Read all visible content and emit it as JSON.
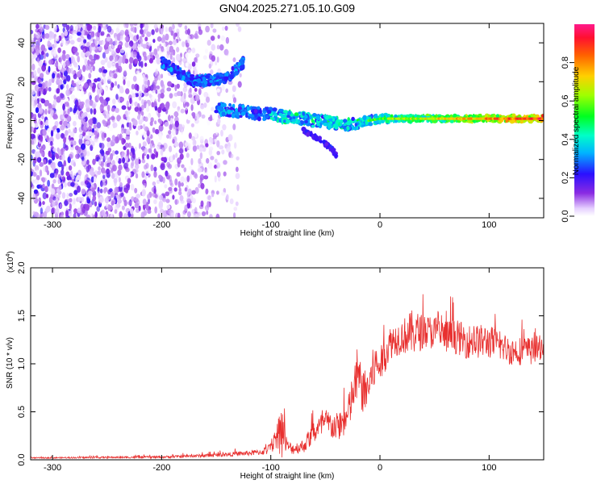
{
  "title": "GN04.2025.271.05.10.G09",
  "chart_data": [
    {
      "type": "heatmap",
      "xlabel": "Height of straight line (km)",
      "ylabel": "Frequency (Hz)",
      "xlim": [
        -320,
        150
      ],
      "ylim": [
        -50,
        50
      ],
      "xticks": [
        -300,
        -200,
        -100,
        0,
        100
      ],
      "yticks": [
        -40,
        -20,
        0,
        20,
        40
      ],
      "colorbar": {
        "label": "Normalized spectral amplitude",
        "range": [
          0,
          1
        ],
        "ticks": [
          0.0,
          0.2,
          0.4,
          0.6,
          0.8
        ],
        "tick_labels": [
          "0.0",
          "0.2",
          "0.4",
          "0.6",
          "0.8"
        ],
        "colormap": "rainbow"
      },
      "features": [
        {
          "name": "noise",
          "x_range": [
            -320,
            -120
          ],
          "y_range": [
            -50,
            50
          ],
          "amplitude": 0.15
        },
        {
          "name": "main-trace",
          "x": [
            -150,
            -100,
            -60,
            -30,
            0,
            50,
            100,
            150
          ],
          "y": [
            6,
            3,
            0,
            -2,
            1,
            1,
            1,
            1
          ]
        },
        {
          "name": "upper-arm",
          "x": [
            -200,
            -170,
            -140,
            -125
          ],
          "y": [
            30,
            20,
            22,
            30
          ]
        },
        {
          "name": "lower-arm",
          "x": [
            -70,
            -55,
            -45,
            -40
          ],
          "y": [
            -5,
            -10,
            -14,
            -18
          ]
        }
      ]
    },
    {
      "type": "line",
      "xlabel": "Height of straight line (km)",
      "ylabel": "SNR (10 * v/v)",
      "y_exponent_label": "(x10",
      "y_exponent": "4",
      "xlim": [
        -320,
        150
      ],
      "ylim": [
        0,
        2.0
      ],
      "xticks": [
        -300,
        -200,
        -100,
        0,
        100
      ],
      "yticks": [
        0.0,
        0.5,
        1.0,
        1.5,
        2.0
      ],
      "ytick_labels": [
        "0.0",
        "0.5",
        "1.0",
        "1.5",
        "2.0"
      ],
      "color": "#e8302f",
      "envelope": {
        "x": [
          -320,
          -200,
          -150,
          -110,
          -100,
          -95,
          -90,
          -85,
          -80,
          -70,
          -60,
          -50,
          -40,
          -30,
          -25,
          -20,
          -15,
          -10,
          -5,
          0,
          10,
          20,
          30,
          40,
          50,
          60,
          70,
          80,
          90,
          100,
          110,
          120,
          130,
          140,
          150
        ],
        "y": [
          0.02,
          0.03,
          0.05,
          0.08,
          0.12,
          0.25,
          0.35,
          0.15,
          0.12,
          0.15,
          0.3,
          0.4,
          0.35,
          0.45,
          0.7,
          0.9,
          0.7,
          0.8,
          1.0,
          1.0,
          1.25,
          1.3,
          1.35,
          1.35,
          1.35,
          1.3,
          1.3,
          1.25,
          1.25,
          1.25,
          1.2,
          1.15,
          1.15,
          1.15,
          1.2
        ],
        "amp": [
          0.01,
          0.02,
          0.03,
          0.05,
          0.1,
          0.2,
          0.5,
          0.1,
          0.1,
          0.12,
          0.2,
          0.25,
          0.25,
          0.3,
          0.4,
          0.4,
          0.4,
          0.4,
          0.4,
          0.3,
          0.3,
          0.3,
          0.4,
          0.3,
          0.3,
          0.3,
          0.3,
          0.3,
          0.3,
          0.3,
          0.25,
          0.25,
          0.25,
          0.25,
          0.2
        ]
      }
    }
  ]
}
